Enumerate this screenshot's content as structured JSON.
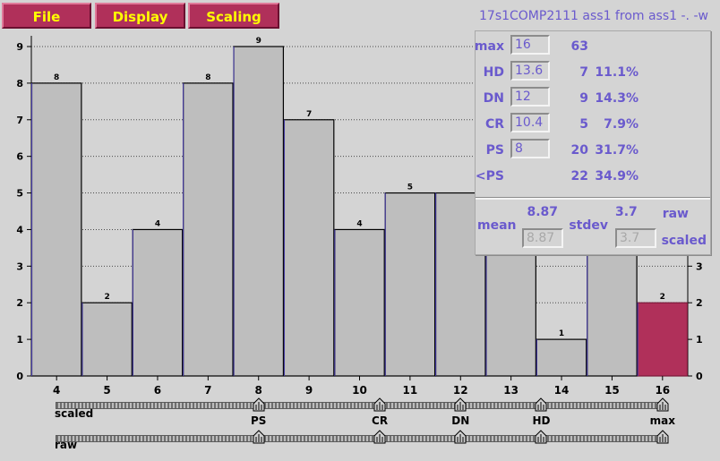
{
  "menu": [
    {
      "label": "File"
    },
    {
      "label": "Display"
    },
    {
      "label": "Scaling"
    }
  ],
  "title": "17s1COMP2111 ass1 from ass1 -. -w",
  "chart_data": {
    "type": "bar",
    "categories": [
      4,
      5,
      6,
      7,
      8,
      9,
      10,
      11,
      12,
      13,
      14,
      15,
      16
    ],
    "values": [
      8,
      2,
      4,
      8,
      9,
      7,
      4,
      5,
      5,
      4,
      1,
      4,
      2
    ],
    "value_labels": [
      "8",
      "2",
      "4",
      "8",
      "9",
      "7",
      "4",
      "5",
      "",
      "",
      "1",
      "",
      "2"
    ],
    "highlight_index": 12,
    "ylim": [
      0,
      9
    ],
    "left_ticks": [
      "0",
      "1",
      "2",
      "3",
      "4",
      "5",
      "6",
      "7",
      "8",
      "9"
    ],
    "right_ticks": [
      "0",
      "1",
      "2",
      "3"
    ],
    "bar_color": "#bebebe",
    "highlight_color": "#b0305a",
    "bar_edge": "#4a3fb0",
    "grid": true
  },
  "stats": {
    "rows": [
      {
        "label": "max",
        "value": "16",
        "count": "63",
        "pct": ""
      },
      {
        "label": "HD",
        "value": "13.6",
        "count": "7",
        "pct": "11.1%"
      },
      {
        "label": "DN",
        "value": "12",
        "count": "9",
        "pct": "14.3%"
      },
      {
        "label": "CR",
        "value": "10.4",
        "count": "5",
        "pct": "7.9%"
      },
      {
        "label": "PS",
        "value": "8",
        "count": "20",
        "pct": "31.7%"
      },
      {
        "label": "<PS",
        "value": "",
        "count": "22",
        "pct": "34.9%"
      }
    ],
    "mean_label": "mean",
    "mean_raw": "8.87",
    "mean_scaled": "8.87",
    "stdev_label": "stdev",
    "stdev_raw": "3.7",
    "stdev_scaled": "3.7",
    "raw_label": "raw",
    "scaled_label": "scaled"
  },
  "sliders": {
    "scaled_label": "scaled",
    "raw_label": "raw",
    "thumbs": [
      {
        "name": "PS",
        "value": 8
      },
      {
        "name": "CR",
        "value": 10.4
      },
      {
        "name": "DN",
        "value": 12
      },
      {
        "name": "HD",
        "value": 13.6
      },
      {
        "name": "max",
        "value": 16
      }
    ]
  }
}
